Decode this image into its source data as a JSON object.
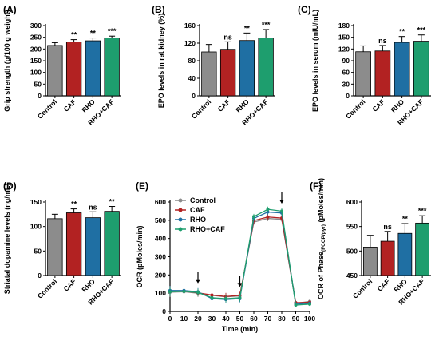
{
  "colors": {
    "Control": "#8c8c8c",
    "CAF": "#b22222",
    "RHO": "#1f6fa3",
    "RHO+CAF": "#1e9e6e"
  },
  "chart_data": [
    {
      "id": "A",
      "type": "bar",
      "panel_label": "(A)",
      "ylabel": "Grip strength (g/100 g weight)",
      "categories": [
        "Control",
        "CAF",
        "RHO",
        "RHO+CAF"
      ],
      "values": [
        215,
        230,
        235,
        247
      ],
      "errors": [
        12,
        10,
        12,
        8
      ],
      "significance": [
        "",
        "**",
        "**",
        "***"
      ],
      "ylim": [
        0,
        300
      ],
      "yticks": [
        0,
        50,
        100,
        150,
        200,
        250,
        300
      ],
      "ytick_labels": [
        "0",
        "50",
        "100",
        "150",
        "200",
        "250",
        "300"
      ]
    },
    {
      "id": "B",
      "type": "bar",
      "panel_label": "(B)",
      "ylabel": "EPO levels in rat kidney (%)",
      "categories": [
        "Control",
        "CAF",
        "RHO",
        "RHO+CAF"
      ],
      "values": [
        100,
        106,
        126,
        132
      ],
      "errors": [
        17,
        17,
        17,
        19
      ],
      "significance": [
        "",
        "ns",
        "**",
        "***"
      ],
      "ylim": [
        0,
        160
      ],
      "yticks": [
        0,
        40,
        80,
        120,
        160
      ],
      "ytick_labels": [
        "0",
        "40",
        "80",
        "120",
        "160"
      ]
    },
    {
      "id": "C",
      "type": "bar",
      "panel_label": "(C)",
      "ylabel": "EPO levels in serum (mIU/mL)",
      "categories": [
        "Control",
        "CAF",
        "RHO",
        "RHO+CAF"
      ],
      "values": [
        113,
        115,
        137,
        140
      ],
      "errors": [
        15,
        14,
        15,
        16
      ],
      "significance": [
        "",
        "ns",
        "**",
        "***"
      ],
      "ylim": [
        0,
        180
      ],
      "yticks": [
        0,
        30,
        60,
        90,
        120,
        150,
        180
      ],
      "ytick_labels": [
        "0",
        "30",
        "60",
        "90",
        "120",
        "150",
        "180"
      ]
    },
    {
      "id": "D",
      "type": "bar",
      "panel_label": "(D)",
      "ylabel": "Striatal dopamine levels (ng/mL)",
      "categories": [
        "Control",
        "CAF",
        "RHO",
        "RHO+CAF"
      ],
      "values": [
        116,
        128,
        118,
        131
      ],
      "errors": [
        9,
        8,
        12,
        10
      ],
      "significance": [
        "",
        "**",
        "ns",
        "**"
      ],
      "ylim": [
        0,
        150
      ],
      "yticks": [
        0,
        50,
        100,
        150
      ],
      "ytick_labels": [
        "0",
        "50",
        "100",
        "150"
      ]
    },
    {
      "id": "E",
      "type": "line",
      "panel_label": "(E)",
      "ylabel": "OCR (pMoles/min)",
      "xlabel": "Time (min)",
      "x": [
        0,
        10,
        20,
        30,
        40,
        50,
        60,
        70,
        80,
        90,
        100
      ],
      "xlim": [
        0,
        100
      ],
      "xticks": [
        0,
        10,
        20,
        30,
        40,
        50,
        60,
        70,
        80,
        90,
        100
      ],
      "xtick_labels": [
        "0",
        "10",
        "20",
        "30",
        "40",
        "50",
        "60",
        "70",
        "80",
        "90",
        "100"
      ],
      "ylim": [
        0,
        600
      ],
      "yticks": [
        0,
        100,
        200,
        300,
        400,
        500,
        600
      ],
      "ytick_labels": [
        "0",
        "100",
        "200",
        "300",
        "400",
        "500",
        "600"
      ],
      "legend_position": "top-left",
      "arrows_at_x": [
        20,
        50,
        80
      ],
      "series": [
        {
          "name": "Control",
          "values": [
            105,
            108,
            100,
            88,
            80,
            85,
            490,
            510,
            505,
            45,
            55
          ],
          "errors": [
            25,
            22,
            20,
            18,
            20,
            20,
            15,
            15,
            15,
            12,
            10
          ]
        },
        {
          "name": "CAF",
          "values": [
            110,
            112,
            102,
            90,
            82,
            88,
            498,
            518,
            512,
            48,
            50
          ],
          "errors": [
            25,
            22,
            20,
            18,
            20,
            20,
            15,
            15,
            15,
            12,
            10
          ]
        },
        {
          "name": "RHO",
          "values": [
            115,
            115,
            108,
            70,
            65,
            70,
            510,
            545,
            540,
            40,
            45
          ],
          "errors": [
            25,
            22,
            20,
            18,
            20,
            20,
            15,
            15,
            15,
            12,
            10
          ]
        },
        {
          "name": "RHO+CAF",
          "values": [
            108,
            110,
            104,
            75,
            70,
            75,
            520,
            560,
            550,
            35,
            40
          ],
          "errors": [
            25,
            22,
            20,
            18,
            20,
            20,
            15,
            15,
            15,
            12,
            10
          ]
        }
      ]
    },
    {
      "id": "F",
      "type": "bar",
      "panel_label": "(F)",
      "ylabel": "OCR of Phase(FCCP/pyr) (pMoles/min)",
      "ylabel_parts": {
        "before": "OCR of Phase",
        "sub": "(FCCP/pyr)",
        "after": " (pMoles/min)"
      },
      "categories": [
        "Control",
        "CAF",
        "RHO",
        "RHO+CAF"
      ],
      "values": [
        508,
        520,
        536,
        557
      ],
      "errors": [
        24,
        20,
        20,
        15
      ],
      "significance": [
        "",
        "ns",
        "**",
        "***"
      ],
      "ylim": [
        450,
        600
      ],
      "yticks": [
        450,
        500,
        550,
        600
      ],
      "ytick_labels": [
        "450",
        "500",
        "550",
        "600"
      ]
    }
  ]
}
